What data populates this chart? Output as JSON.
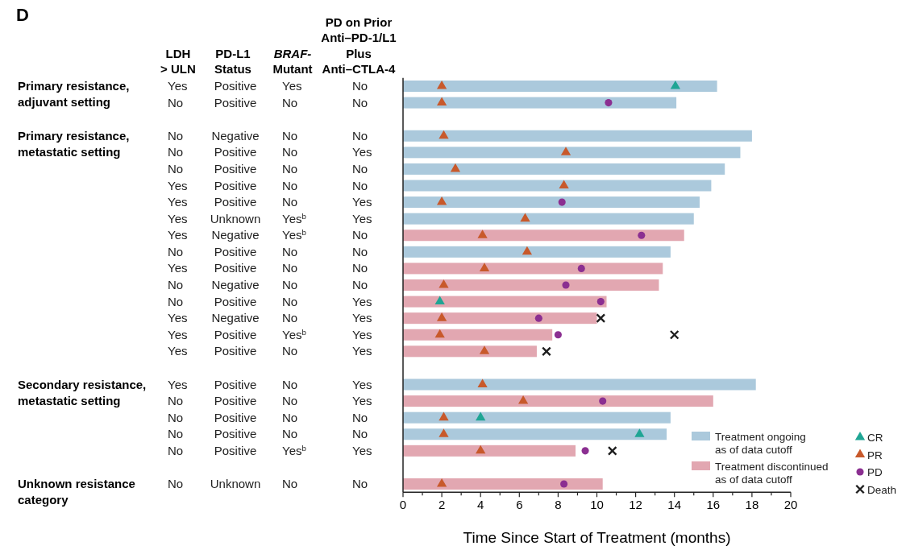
{
  "chart_data": {
    "type": "bar",
    "orientation": "horizontal",
    "title": "D",
    "xlabel": "Time Since Start of Treatment (months)",
    "categories": [
      null,
      null,
      null,
      null,
      null,
      null,
      null,
      null,
      null,
      null,
      null,
      null,
      null,
      null,
      null,
      null,
      null,
      null,
      null,
      null,
      null,
      null,
      null,
      null,
      null
    ],
    "series": [
      {
        "name": "Treatment ongoing\nas of data cutoff",
        "color": "#abc9dc",
        "values": [
          16.2,
          14.1,
          null,
          18.0,
          17.4,
          16.6,
          15.9,
          15.3,
          15.0,
          null,
          13.8,
          null,
          null,
          null,
          null,
          null,
          null,
          null,
          18.2,
          null,
          13.8,
          13.6,
          null,
          null,
          null
        ]
      },
      {
        "name": "Treatment discontinued\nas of data cutoff",
        "color": "#e2a7b1",
        "values": [
          null,
          null,
          null,
          null,
          null,
          null,
          null,
          null,
          null,
          14.5,
          null,
          13.4,
          13.2,
          10.5,
          10.0,
          7.7,
          6.9,
          null,
          null,
          16.0,
          null,
          null,
          8.9,
          null,
          10.3
        ]
      },
      {
        "type": "scatter",
        "name": "CR",
        "marker": "triangle",
        "color": "#1fa594",
        "values": [
          14.05,
          null,
          null,
          null,
          null,
          null,
          null,
          null,
          null,
          null,
          null,
          null,
          null,
          1.9,
          null,
          null,
          null,
          null,
          null,
          null,
          4.0,
          12.2,
          null,
          null,
          null
        ]
      },
      {
        "type": "scatter",
        "name": "PR",
        "marker": "triangle",
        "color": "#c8592b",
        "values": [
          2.0,
          2.0,
          null,
          2.1,
          8.4,
          2.7,
          8.3,
          2.0,
          6.3,
          4.1,
          6.4,
          4.2,
          2.1,
          null,
          2.0,
          1.9,
          4.2,
          null,
          4.1,
          6.2,
          2.1,
          2.1,
          4.0,
          null,
          2.0
        ]
      },
      {
        "type": "scatter",
        "name": "PD",
        "marker": "circle",
        "color": "#8b2f91",
        "values": [
          null,
          10.6,
          null,
          null,
          null,
          null,
          null,
          8.2,
          null,
          12.3,
          null,
          9.2,
          8.4,
          10.2,
          7.0,
          8.0,
          null,
          null,
          null,
          10.3,
          null,
          null,
          9.4,
          null,
          8.3
        ]
      },
      {
        "type": "scatter",
        "name": "Death",
        "marker": "cross",
        "color": "#1e1e1e",
        "values": [
          null,
          null,
          null,
          null,
          null,
          null,
          null,
          null,
          null,
          null,
          null,
          null,
          null,
          null,
          10.2,
          14.0,
          7.4,
          null,
          null,
          null,
          null,
          null,
          10.8,
          null,
          null
        ]
      }
    ],
    "xlim": [
      0,
      20
    ],
    "xticks": [
      0,
      {
        "value": 1,
        "label": null
      },
      2,
      {
        "value": 3,
        "label": null
      },
      4,
      {
        "value": 5,
        "label": null
      },
      6,
      {
        "value": 7,
        "label": null
      },
      8,
      {
        "value": 9,
        "label": null
      },
      10,
      {
        "value": 11,
        "label": null
      },
      12,
      {
        "value": 13,
        "label": null
      },
      14,
      {
        "value": 15,
        "label": null
      },
      16,
      {
        "value": 17,
        "label": null
      },
      18,
      {
        "value": 19,
        "label": null
      },
      20
    ],
    "legend": "bottom right",
    "annotations": [
      "LDH\n> ULN",
      "PD-L1\nStatus",
      "BRAF-\nMutant",
      "PD on Prior\nAnti–PD-1/L1\nPlus\nAnti–CTLA-4",
      "Primary resistance,\nadjuvant setting",
      "Primary resistance,\nmetastatic setting",
      "Secondary resistance,\nmetastatic setting",
      "Unknown resistance\ncategory",
      "Yes",
      "Positive",
      "Yes",
      "No",
      "No",
      "Positive",
      "No",
      "No",
      "No",
      "Negative",
      "No",
      "No",
      "No",
      "Positive",
      "No",
      "Yes",
      "No",
      "Positive",
      "No",
      "No",
      "Yes",
      "Positive",
      "No",
      "No",
      "Yes",
      "Positive",
      "No",
      "Yes",
      "Yes",
      "Unknown",
      "Yes$^{b}$",
      "Yes",
      "Yes",
      "Negative",
      "Yes$^{b}$",
      "No",
      "No",
      "Positive",
      "No",
      "No",
      "Yes",
      "Positive",
      "No",
      "No",
      "No",
      "Negative",
      "No",
      "No",
      "No",
      "Positive",
      "No",
      "Yes",
      "Yes",
      "Negative",
      "No",
      "Yes",
      "Yes",
      "Positive",
      "Yes$^{b}$",
      "Yes",
      "Yes",
      "Positive",
      "No",
      "Yes",
      "Yes",
      "Positive",
      "No",
      "Yes",
      "No",
      "Positive",
      "No",
      "Yes",
      "No",
      "Positive",
      "No",
      "No",
      "No",
      "Positive",
      "No",
      "No",
      "No",
      "Positive",
      "Yes$^{b}$",
      "Yes",
      "No",
      "Unknown",
      "No",
      "No"
    ]
  }
}
